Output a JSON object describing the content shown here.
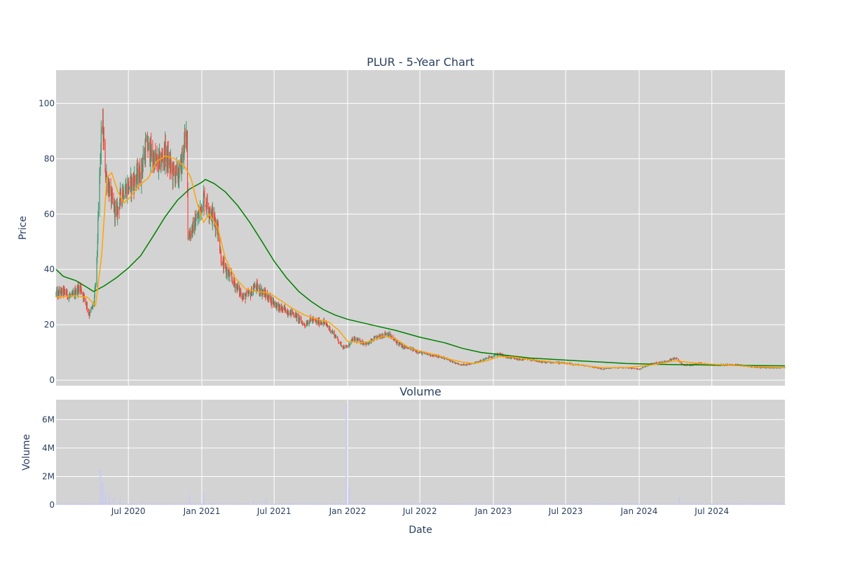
{
  "chart_data": {
    "type": "candlestick",
    "title": "PLUR - 5-Year Chart",
    "price_panel": {
      "ylabel": "Price",
      "ylim": [
        -2,
        112
      ],
      "yticks": [
        0,
        20,
        40,
        60,
        80,
        100
      ],
      "ytick_labels": [
        "0",
        "20",
        "40",
        "60",
        "80",
        "100"
      ]
    },
    "volume_panel": {
      "subtitle": "Volume",
      "ylabel": "Volume",
      "ylim": [
        0,
        7400000
      ],
      "yticks": [
        0,
        2000000,
        4000000,
        6000000
      ],
      "ytick_labels": [
        "0",
        "2M",
        "4M",
        "6M"
      ]
    },
    "xlabel": "Date",
    "x_range": [
      "2020-01-02",
      "2024-12-31"
    ],
    "x_ticks": [
      "2020-07-01",
      "2021-01-01",
      "2021-07-01",
      "2022-01-01",
      "2022-07-01",
      "2023-01-01",
      "2023-07-01",
      "2024-01-01",
      "2024-07-01"
    ],
    "x_tick_labels": [
      "Jul 2020",
      "Jan 2021",
      "Jul 2021",
      "Jan 2022",
      "Jul 2022",
      "Jan 2023",
      "Jul 2023",
      "Jan 2024",
      "Jul 2024"
    ],
    "colors": {
      "up": "#3d9970",
      "down": "#ff4136",
      "ma_short": "#ffa500",
      "ma_long": "#008000",
      "volume": "#c9c9f0"
    },
    "price_path": [
      [
        "2020-01-02",
        31
      ],
      [
        "2020-01-20",
        32
      ],
      [
        "2020-02-10",
        30
      ],
      [
        "2020-03-01",
        34
      ],
      [
        "2020-03-15",
        29
      ],
      [
        "2020-03-25",
        24
      ],
      [
        "2020-04-05",
        27
      ],
      [
        "2020-04-12",
        38
      ],
      [
        "2020-04-18",
        65
      ],
      [
        "2020-04-26",
        95
      ],
      [
        "2020-05-05",
        75
      ],
      [
        "2020-05-20",
        65
      ],
      [
        "2020-06-01",
        60
      ],
      [
        "2020-06-15",
        68
      ],
      [
        "2020-07-01",
        70
      ],
      [
        "2020-07-15",
        72
      ],
      [
        "2020-08-01",
        75
      ],
      [
        "2020-08-15",
        85
      ],
      [
        "2020-09-01",
        80
      ],
      [
        "2020-09-15",
        78
      ],
      [
        "2020-10-01",
        82
      ],
      [
        "2020-10-20",
        75
      ],
      [
        "2020-11-05",
        74
      ],
      [
        "2020-11-25",
        90
      ],
      [
        "2020-11-27",
        52
      ],
      [
        "2020-12-10",
        55
      ],
      [
        "2020-12-25",
        60
      ],
      [
        "2021-01-05",
        66
      ],
      [
        "2021-01-20",
        62
      ],
      [
        "2021-02-10",
        55
      ],
      [
        "2021-02-20",
        42
      ],
      [
        "2021-03-01",
        40
      ],
      [
        "2021-03-15",
        37
      ],
      [
        "2021-04-01",
        33
      ],
      [
        "2021-04-15",
        30
      ],
      [
        "2021-05-01",
        31
      ],
      [
        "2021-05-15",
        34
      ],
      [
        "2021-06-01",
        32
      ],
      [
        "2021-06-15",
        30
      ],
      [
        "2021-07-01",
        28
      ],
      [
        "2021-07-15",
        26
      ],
      [
        "2021-08-01",
        25
      ],
      [
        "2021-08-20",
        24
      ],
      [
        "2021-09-01",
        22
      ],
      [
        "2021-09-15",
        20
      ],
      [
        "2021-10-01",
        22
      ],
      [
        "2021-10-15",
        21
      ],
      [
        "2021-11-01",
        21
      ],
      [
        "2021-11-15",
        19
      ],
      [
        "2021-12-01",
        16
      ],
      [
        "2021-12-20",
        12
      ],
      [
        "2022-01-01",
        12
      ],
      [
        "2022-01-15",
        15
      ],
      [
        "2022-02-01",
        14
      ],
      [
        "2022-02-20",
        13
      ],
      [
        "2022-03-10",
        15
      ],
      [
        "2022-03-25",
        16
      ],
      [
        "2022-04-10",
        17
      ],
      [
        "2022-05-01",
        14
      ],
      [
        "2022-05-20",
        12
      ],
      [
        "2022-06-15",
        11
      ],
      [
        "2022-07-01",
        10
      ],
      [
        "2022-08-01",
        9
      ],
      [
        "2022-09-01",
        8
      ],
      [
        "2022-10-01",
        6
      ],
      [
        "2022-10-20",
        5.5
      ],
      [
        "2022-11-10",
        6
      ],
      [
        "2022-12-01",
        7
      ],
      [
        "2022-12-25",
        8.5
      ],
      [
        "2023-01-15",
        9.5
      ],
      [
        "2023-02-01",
        8.5
      ],
      [
        "2023-03-01",
        7.5
      ],
      [
        "2023-04-01",
        7.5
      ],
      [
        "2023-05-01",
        6.5
      ],
      [
        "2023-06-01",
        6.5
      ],
      [
        "2023-07-01",
        6
      ],
      [
        "2023-08-01",
        5.5
      ],
      [
        "2023-09-01",
        5
      ],
      [
        "2023-10-01",
        4
      ],
      [
        "2023-11-01",
        4.5
      ],
      [
        "2023-12-01",
        4.5
      ],
      [
        "2024-01-01",
        4
      ],
      [
        "2024-02-01",
        6
      ],
      [
        "2024-03-01",
        6.5
      ],
      [
        "2024-04-01",
        8
      ],
      [
        "2024-04-20",
        5.5
      ],
      [
        "2024-05-10",
        5.5
      ],
      [
        "2024-06-01",
        6
      ],
      [
        "2024-07-01",
        5.5
      ],
      [
        "2024-08-01",
        5.5
      ],
      [
        "2024-09-01",
        5.5
      ],
      [
        "2024-10-01",
        5
      ],
      [
        "2024-11-01",
        4.5
      ],
      [
        "2024-12-01",
        4.5
      ],
      [
        "2024-12-31",
        4.5
      ]
    ],
    "ma_short_path": [
      [
        "2020-01-02",
        30
      ],
      [
        "2020-02-15",
        30.5
      ],
      [
        "2020-03-20",
        30
      ],
      [
        "2020-04-10",
        27
      ],
      [
        "2020-04-25",
        45
      ],
      [
        "2020-05-08",
        73
      ],
      [
        "2020-05-20",
        75
      ],
      [
        "2020-06-05",
        68
      ],
      [
        "2020-06-20",
        64
      ],
      [
        "2020-07-05",
        66
      ],
      [
        "2020-07-25",
        70
      ],
      [
        "2020-08-20",
        73
      ],
      [
        "2020-09-10",
        79
      ],
      [
        "2020-10-01",
        81
      ],
      [
        "2020-10-25",
        80
      ],
      [
        "2020-11-20",
        77
      ],
      [
        "2020-12-05",
        73
      ],
      [
        "2020-12-20",
        64
      ],
      [
        "2021-01-05",
        57
      ],
      [
        "2021-01-20",
        60
      ],
      [
        "2021-02-10",
        55
      ],
      [
        "2021-03-01",
        44
      ],
      [
        "2021-03-25",
        37
      ],
      [
        "2021-04-20",
        33
      ],
      [
        "2021-05-20",
        32
      ],
      [
        "2021-06-20",
        31.5
      ],
      [
        "2021-07-15",
        29
      ],
      [
        "2021-08-15",
        26
      ],
      [
        "2021-09-15",
        23.5
      ],
      [
        "2021-10-15",
        22
      ],
      [
        "2021-11-15",
        21
      ],
      [
        "2021-12-10",
        18
      ],
      [
        "2022-01-01",
        14
      ],
      [
        "2022-02-01",
        13.5
      ],
      [
        "2022-03-01",
        14
      ],
      [
        "2022-04-01",
        16
      ],
      [
        "2022-05-01",
        15
      ],
      [
        "2022-06-01",
        12
      ],
      [
        "2022-07-01",
        10.5
      ],
      [
        "2022-08-15",
        9
      ],
      [
        "2022-09-15",
        7.5
      ],
      [
        "2022-10-15",
        6.5
      ],
      [
        "2022-11-15",
        6
      ],
      [
        "2022-12-15",
        7
      ],
      [
        "2023-01-15",
        8.5
      ],
      [
        "2023-02-15",
        8.5
      ],
      [
        "2023-04-01",
        7.5
      ],
      [
        "2023-06-01",
        6.5
      ],
      [
        "2023-08-01",
        5.5
      ],
      [
        "2023-10-01",
        4.5
      ],
      [
        "2023-12-01",
        4.5
      ],
      [
        "2024-02-01",
        5.5
      ],
      [
        "2024-04-01",
        7
      ],
      [
        "2024-06-01",
        6
      ],
      [
        "2024-08-01",
        5.5
      ],
      [
        "2024-10-01",
        5
      ],
      [
        "2024-12-31",
        4.5
      ]
    ],
    "ma_long_path": [
      [
        "2020-01-02",
        40
      ],
      [
        "2020-01-20",
        37.5
      ],
      [
        "2020-02-20",
        36
      ],
      [
        "2020-03-20",
        33.5
      ],
      [
        "2020-04-05",
        32
      ],
      [
        "2020-05-01",
        34
      ],
      [
        "2020-06-01",
        37
      ],
      [
        "2020-07-01",
        40.5
      ],
      [
        "2020-08-01",
        45
      ],
      [
        "2020-09-01",
        52
      ],
      [
        "2020-10-01",
        59
      ],
      [
        "2020-11-01",
        65
      ],
      [
        "2020-12-01",
        69
      ],
      [
        "2021-01-01",
        71.5
      ],
      [
        "2021-01-10",
        72.5
      ],
      [
        "2021-02-01",
        71
      ],
      [
        "2021-03-01",
        68
      ],
      [
        "2021-04-01",
        63
      ],
      [
        "2021-05-01",
        57
      ],
      [
        "2021-06-01",
        50
      ],
      [
        "2021-07-01",
        43
      ],
      [
        "2021-08-01",
        37
      ],
      [
        "2021-09-01",
        32
      ],
      [
        "2021-10-01",
        28.5
      ],
      [
        "2021-11-01",
        25.5
      ],
      [
        "2021-12-01",
        23.5
      ],
      [
        "2022-01-01",
        22
      ],
      [
        "2022-03-01",
        20
      ],
      [
        "2022-05-01",
        18
      ],
      [
        "2022-07-01",
        15.5
      ],
      [
        "2022-09-01",
        13.5
      ],
      [
        "2022-10-15",
        11.5
      ],
      [
        "2022-12-01",
        10
      ],
      [
        "2023-02-01",
        9
      ],
      [
        "2023-04-01",
        8
      ],
      [
        "2023-06-01",
        7.5
      ],
      [
        "2023-08-01",
        7
      ],
      [
        "2023-10-01",
        6.5
      ],
      [
        "2023-12-01",
        6
      ],
      [
        "2024-02-01",
        5.8
      ],
      [
        "2024-04-01",
        5.6
      ],
      [
        "2024-06-01",
        5.5
      ],
      [
        "2024-08-01",
        5.4
      ],
      [
        "2024-10-01",
        5.3
      ],
      [
        "2024-12-31",
        5.2
      ]
    ],
    "volume_spikes": [
      [
        "2020-04-22",
        2500000
      ],
      [
        "2020-04-28",
        1600000
      ],
      [
        "2020-05-05",
        800000
      ],
      [
        "2020-05-15",
        700000
      ],
      [
        "2020-05-25",
        500000
      ],
      [
        "2020-06-10",
        400000
      ],
      [
        "2020-08-01",
        200000
      ],
      [
        "2020-12-01",
        700000
      ],
      [
        "2021-01-05",
        800000
      ],
      [
        "2021-05-10",
        300000
      ],
      [
        "2021-06-10",
        450000
      ],
      [
        "2021-12-29",
        7100000
      ],
      [
        "2022-01-05",
        1300000
      ],
      [
        "2023-01-15",
        200000
      ],
      [
        "2024-04-10",
        500000
      ]
    ],
    "volume_base": 90000
  }
}
